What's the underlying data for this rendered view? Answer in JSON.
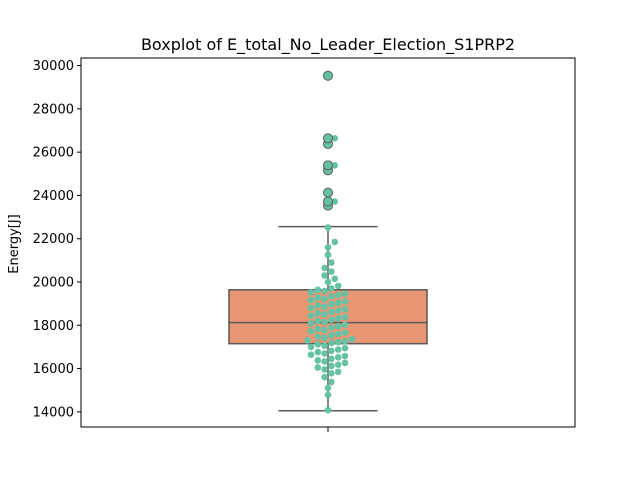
{
  "chart_data": {
    "type": "box",
    "title": "Boxplot of E_total_No_Leader_Election_S1PRP2",
    "xlabel": "",
    "ylabel": "Energy[J]",
    "ylim": [
      13300,
      30350
    ],
    "yticks": [
      14000,
      16000,
      18000,
      20000,
      22000,
      24000,
      26000,
      28000,
      30000
    ],
    "ytick_labels": [
      "14000",
      "16000",
      "18000",
      "20000",
      "22000",
      "24000",
      "26000",
      "28000",
      "30000"
    ],
    "grid": false,
    "box": {
      "q1": 17150,
      "median": 18120,
      "q3": 19640,
      "whisker_low": 14050,
      "whisker_high": 22560,
      "outliers": [
        23530,
        23720,
        24130,
        25160,
        25390,
        26380,
        26640,
        29530
      ],
      "box_color": "#e99675",
      "line_color": "#5a5a5a"
    },
    "swarm": {
      "color": "#66c2a5",
      "values": [
        14080,
        14780,
        15100,
        15380,
        15600,
        15780,
        15850,
        15960,
        16050,
        16120,
        16180,
        16260,
        16330,
        16380,
        16450,
        16520,
        16580,
        16640,
        16700,
        16760,
        16820,
        16880,
        16940,
        17000,
        17060,
        17120,
        17180,
        17220,
        17260,
        17300,
        17360,
        17420,
        17480,
        17540,
        17600,
        17660,
        17720,
        17780,
        17840,
        17900,
        17960,
        18020,
        18080,
        18140,
        18200,
        18260,
        18320,
        18380,
        18440,
        18500,
        18560,
        18620,
        18680,
        18740,
        18800,
        18860,
        18920,
        18980,
        19040,
        19100,
        19160,
        19220,
        19280,
        19340,
        19400,
        19460,
        19520,
        19580,
        19640,
        19700,
        19820,
        20000,
        20150,
        20300,
        20480,
        20650,
        20900,
        21250,
        21600,
        21850,
        22520,
        23530,
        23720,
        24130,
        25160,
        25390,
        26380,
        26640,
        29530
      ]
    }
  }
}
